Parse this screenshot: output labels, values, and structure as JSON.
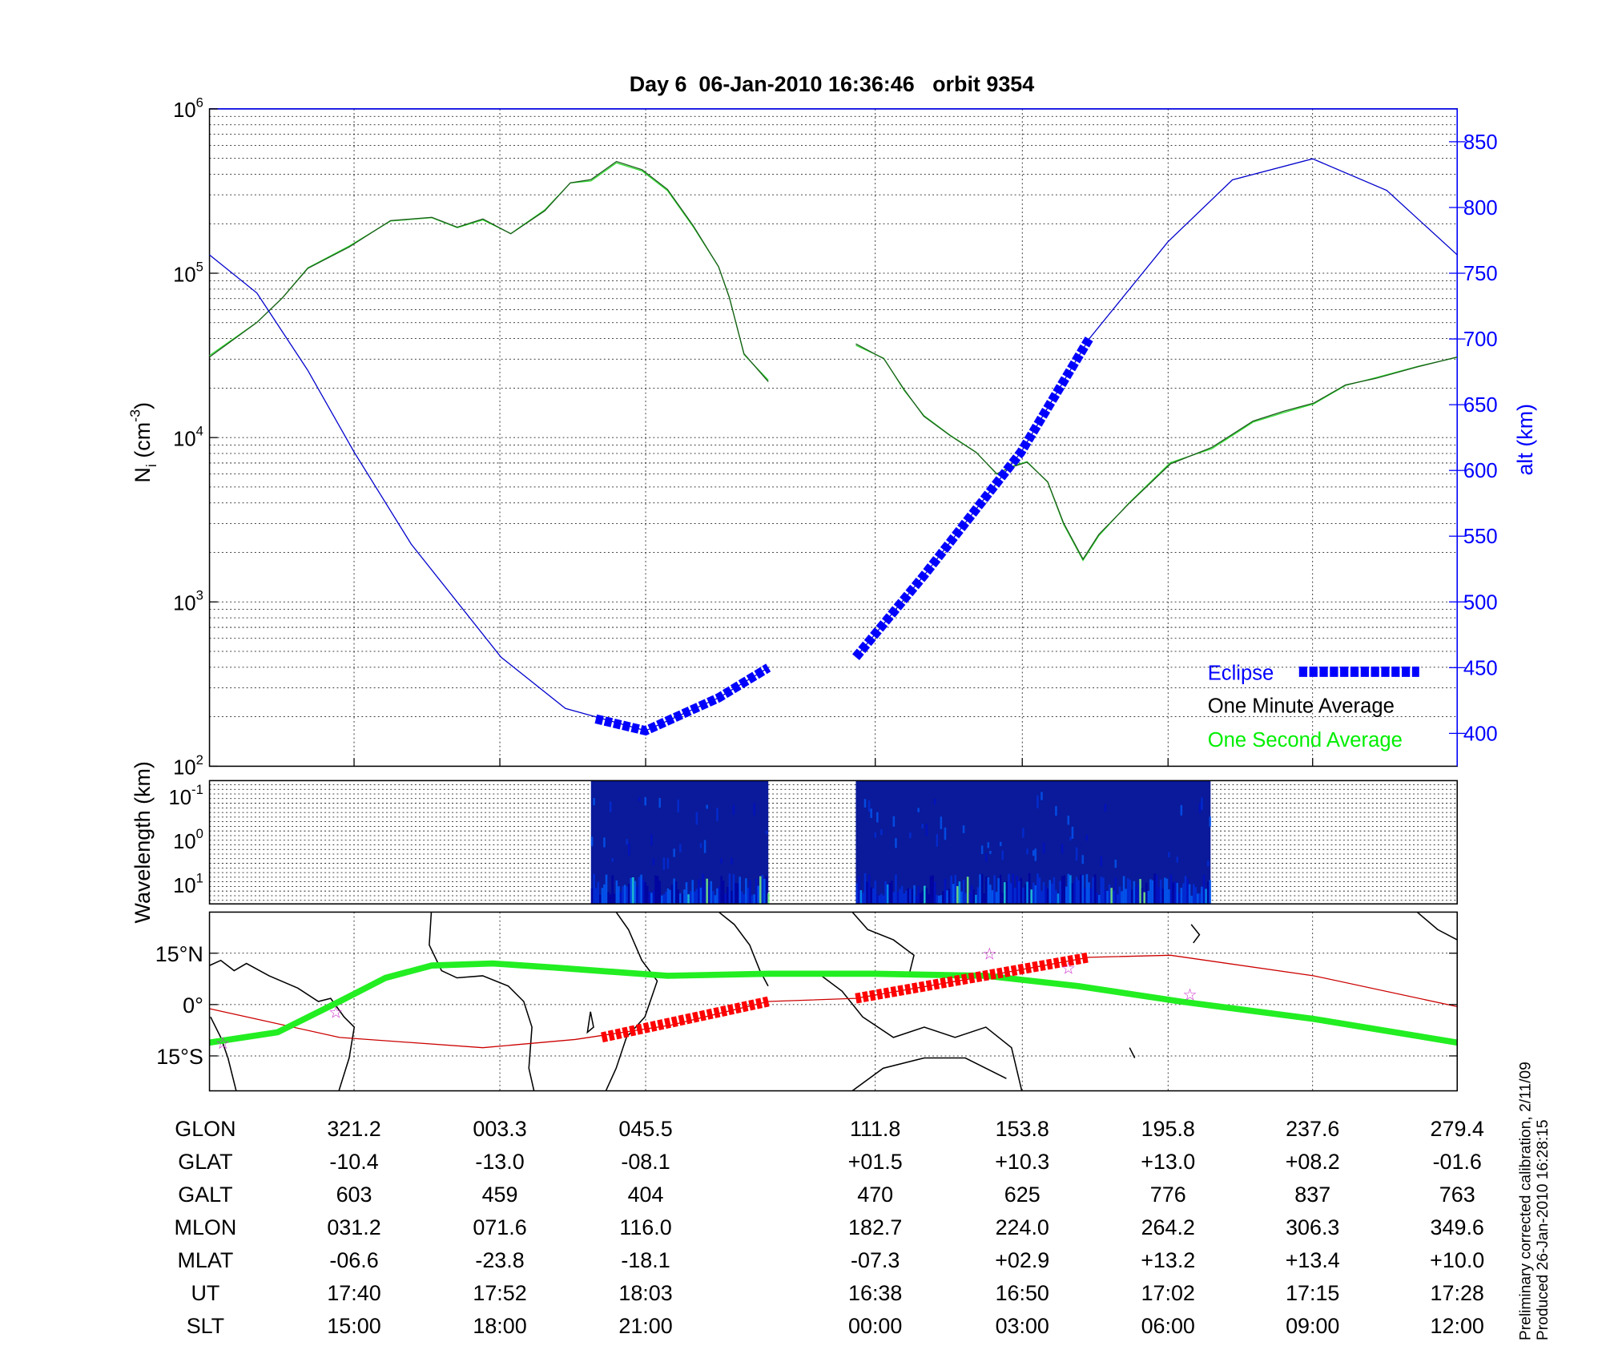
{
  "chart_data": [
    {
      "type": "line",
      "title": "Day 6  06-Jan-2010 16:36:46   orbit 9354",
      "xlabel": "",
      "x_units": "minutes from plot start",
      "xlim": [
        0,
        102.7
      ],
      "ylabel": "N_i (cm^-3)",
      "ylabel_parts": {
        "main": "N",
        "sub": "i",
        "unit": " (cm",
        "sup": "-3",
        "close": ")"
      },
      "yscale": "log",
      "ylim_log10": [
        2,
        6
      ],
      "yticks": [
        {
          "base": "10",
          "exp": "2"
        },
        {
          "base": "10",
          "exp": "3"
        },
        {
          "base": "10",
          "exp": "4"
        },
        {
          "base": "10",
          "exp": "5"
        },
        {
          "base": "10",
          "exp": "6"
        }
      ],
      "y2label": "alt (km)",
      "y2lim": [
        375,
        875
      ],
      "y2ticks": [
        "400",
        "450",
        "500",
        "550",
        "600",
        "650",
        "700",
        "750",
        "800",
        "850"
      ],
      "grid": true,
      "legend": {
        "placement": "bottom-right",
        "entries": [
          {
            "label": "Eclipse",
            "color": "#0000ff"
          },
          {
            "label": "One Minute Average",
            "color": "#000000"
          },
          {
            "label": "One Second Average",
            "color": "#00ee00"
          }
        ]
      },
      "series": [
        {
          "name": "Ion density (log10 N_i)",
          "color": "#1a7a1a",
          "segments": [
            [
              [
                0,
                4.49
              ],
              [
                3.9,
                4.7
              ],
              [
                6.0,
                4.85
              ],
              [
                8.1,
                5.03
              ],
              [
                11.5,
                5.16
              ],
              [
                14.9,
                5.32
              ],
              [
                18.3,
                5.34
              ],
              [
                20.4,
                5.28
              ],
              [
                22.5,
                5.33
              ],
              [
                24.8,
                5.24
              ],
              [
                27.6,
                5.38
              ],
              [
                29.7,
                5.55
              ],
              [
                31.4,
                5.57
              ],
              [
                33.5,
                5.68
              ],
              [
                35.6,
                5.63
              ],
              [
                37.7,
                5.51
              ],
              [
                39.8,
                5.29
              ],
              [
                41.9,
                5.04
              ],
              [
                42.8,
                4.85
              ],
              [
                44.0,
                4.51
              ],
              [
                46.0,
                4.34
              ]
            ],
            [
              [
                53.2,
                4.57
              ],
              [
                55.5,
                4.48
              ],
              [
                57.2,
                4.29
              ],
              [
                58.8,
                4.13
              ],
              [
                61.0,
                4.01
              ],
              [
                63.1,
                3.91
              ],
              [
                64.8,
                3.78
              ],
              [
                66.0,
                3.82
              ],
              [
                67.3,
                3.85
              ],
              [
                69.0,
                3.73
              ],
              [
                70.3,
                3.48
              ],
              [
                71.9,
                3.26
              ],
              [
                73.2,
                3.41
              ],
              [
                75.7,
                3.6
              ],
              [
                79.1,
                3.84
              ],
              [
                82.5,
                3.94
              ],
              [
                85.9,
                4.1
              ],
              [
                88.4,
                4.16
              ],
              [
                90.9,
                4.21
              ],
              [
                93.5,
                4.32
              ],
              [
                96.0,
                4.36
              ],
              [
                99.4,
                4.43
              ],
              [
                102.7,
                4.49
              ]
            ]
          ]
        },
        {
          "name": "Altitude (km)",
          "color": "#0000cc",
          "axis": "y2",
          "segments": [
            [
              [
                0,
                764
              ],
              [
                3.9,
                735
              ],
              [
                8.1,
                676
              ],
              [
                11.9,
                614
              ],
              [
                16.6,
                544
              ],
              [
                24.0,
                458
              ],
              [
                29.3,
                419
              ],
              [
                35.9,
                402
              ],
              [
                41.9,
                427
              ],
              [
                46.0,
                450
              ]
            ],
            [
              [
                53.2,
                458
              ],
              [
                58.8,
                520
              ],
              [
                66.8,
                614
              ],
              [
                72.4,
                700
              ],
              [
                78.9,
                774
              ],
              [
                84.2,
                821
              ],
              [
                90.8,
                837
              ],
              [
                96.9,
                813
              ],
              [
                102.7,
                764
              ]
            ]
          ]
        },
        {
          "name": "Eclipse",
          "color": "#0000ff",
          "axis": "y2",
          "segments": [
            [
              [
                31.8,
                411
              ],
              [
                35.9,
                402
              ],
              [
                41.9,
                427
              ],
              [
                46.0,
                450
              ]
            ],
            [
              [
                53.2,
                458
              ],
              [
                58.8,
                520
              ],
              [
                66.8,
                614
              ],
              [
                72.4,
                700
              ]
            ]
          ]
        }
      ]
    },
    {
      "type": "heatmap",
      "ylabel": "Wavelength (km)",
      "yticks": [
        {
          "base": "10",
          "exp": "-1"
        },
        {
          "base": "10",
          "exp": "0"
        },
        {
          "base": "10",
          "exp": "1"
        }
      ],
      "data_intervals_minutes": [
        [
          31.4,
          46.0
        ],
        [
          53.2,
          82.4
        ]
      ],
      "colormap": "jet"
    },
    {
      "type": "line",
      "subtype": "map",
      "yticks": [
        "15°N",
        "0°",
        "15°S"
      ],
      "series": [
        {
          "name": "Magnetic equator / footprint track",
          "color": "#00ee00",
          "points": [
            [
              0,
              -11.1
            ],
            [
              5.6,
              -8.1
            ],
            [
              10.7,
              0.9
            ],
            [
              14.5,
              7.8
            ],
            [
              18.3,
              11.4
            ],
            [
              23.3,
              12.0
            ],
            [
              28.4,
              10.8
            ],
            [
              37.7,
              8.4
            ],
            [
              46.1,
              9.0
            ],
            [
              54.6,
              9.0
            ],
            [
              63.9,
              8.4
            ],
            [
              71.5,
              5.4
            ],
            [
              79.9,
              0.9
            ],
            [
              90.9,
              -4.2
            ],
            [
              102.7,
              -11.1
            ]
          ]
        },
        {
          "name": "Satellite ground track",
          "color": "#cc0000",
          "points": [
            [
              0,
              -1.2
            ],
            [
              10.7,
              -9.6
            ],
            [
              22.5,
              -12.6
            ],
            [
              30.1,
              -10.2
            ],
            [
              38.0,
              -6.0
            ],
            [
              46.0,
              0.9
            ],
            [
              53.2,
              1.8
            ],
            [
              63.1,
              7.8
            ],
            [
              72.4,
              13.8
            ],
            [
              79.1,
              14.4
            ],
            [
              90.9,
              8.4
            ],
            [
              102.7,
              -0.6
            ]
          ]
        },
        {
          "name": "Eclipse track",
          "color": "#ff0000",
          "segments": [
            [
              [
                32.3,
                -9.6
              ],
              [
                46.0,
                0.9
              ]
            ],
            [
              [
                53.2,
                1.8
              ],
              [
                72.4,
                13.8
              ]
            ]
          ]
        },
        {
          "name": "Stars",
          "color": "#cc33cc",
          "points": [
            [
              1.1,
              -11.1
            ],
            [
              10.4,
              -2.1
            ],
            [
              64.2,
              15.0
            ],
            [
              70.7,
              10.8
            ],
            [
              80.7,
              3.0
            ]
          ]
        }
      ]
    }
  ],
  "table": {
    "rows": [
      {
        "label": "GLON",
        "values": [
          "321.2",
          "003.3",
          "045.5",
          "111.8",
          "153.8",
          "195.8",
          "237.6",
          "279.4"
        ]
      },
      {
        "label": "GLAT",
        "values": [
          "-10.4",
          "-13.0",
          "-08.1",
          "+01.5",
          "+10.3",
          "+13.0",
          "+08.2",
          "-01.6"
        ]
      },
      {
        "label": "GALT",
        "values": [
          "603",
          "459",
          "404",
          "470",
          "625",
          "776",
          "837",
          "763"
        ]
      },
      {
        "label": "MLON",
        "values": [
          "031.2",
          "071.6",
          "116.0",
          "182.7",
          "224.0",
          "264.2",
          "306.3",
          "349.6"
        ]
      },
      {
        "label": "MLAT",
        "values": [
          "-06.6",
          "-23.8",
          "-18.1",
          "-07.3",
          "+02.9",
          "+13.2",
          "+13.4",
          "+10.0"
        ]
      },
      {
        "label": "UT",
        "values": [
          "17:40",
          "17:52",
          "18:03",
          "16:38",
          "16:50",
          "17:02",
          "17:15",
          "17:28"
        ]
      },
      {
        "label": "SLT",
        "values": [
          "15:00",
          "18:00",
          "21:00",
          "00:00",
          "03:00",
          "06:00",
          "09:00",
          "12:00"
        ]
      }
    ],
    "column_minutes": [
      11.9,
      23.9,
      35.9,
      54.8,
      66.9,
      78.9,
      90.8,
      102.7
    ]
  },
  "footer": {
    "line1": "Preliminary corrected calibration, 2/11/09",
    "line2": "Produced 26-Jan-2010 16:28:15"
  }
}
